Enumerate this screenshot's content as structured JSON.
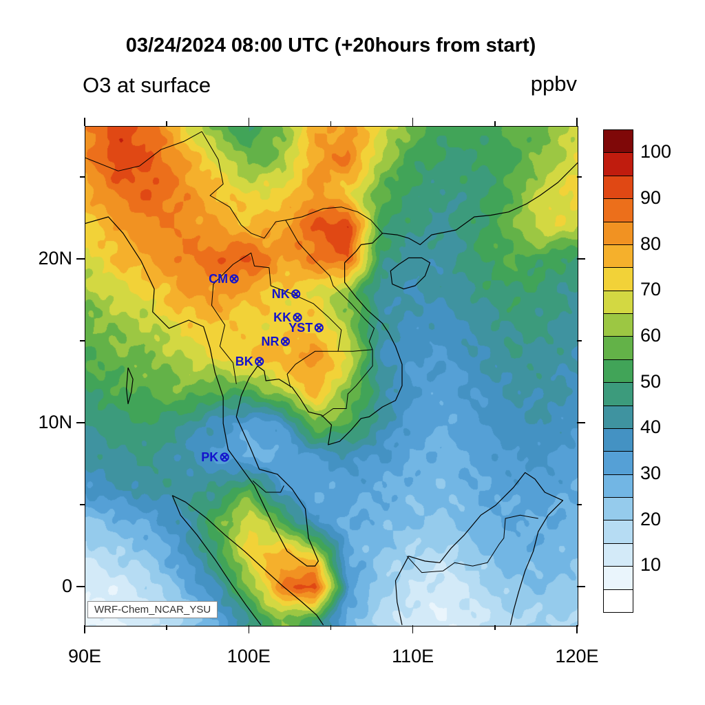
{
  "figure": {
    "title": "03/24/2024 08:00 UTC (+20hours from start)",
    "subtitle_left": "O3 at surface",
    "units_label": "ppbv",
    "watermark": "WRF-Chem_NCAR_YSU"
  },
  "chart_data": {
    "type": "heatmap",
    "title": "O3 at surface",
    "units": "ppbv",
    "annotation": "WRF-Chem_NCAR_YSU",
    "x_axis": {
      "min": 90,
      "max": 120,
      "minor_tick_interval": 5,
      "ticks": [
        {
          "value": 90,
          "label": "90E"
        },
        {
          "value": 100,
          "label": "100E"
        },
        {
          "value": 110,
          "label": "110E"
        },
        {
          "value": 120,
          "label": "120E"
        }
      ]
    },
    "y_axis": {
      "min": -2.35,
      "max": 28.1,
      "minor_tick_interval": 5,
      "ticks": [
        {
          "value": 0,
          "label": "0"
        },
        {
          "value": 10,
          "label": "10N"
        },
        {
          "value": 20,
          "label": "20N"
        }
      ]
    },
    "color_scale": {
      "min": 0,
      "max": 105,
      "step": 5,
      "labels": [
        10,
        20,
        30,
        40,
        50,
        60,
        70,
        80,
        90,
        100
      ],
      "colors": [
        "#ffffff",
        "#eaf5fc",
        "#d3eaf8",
        "#b6dcf3",
        "#95cbec",
        "#72b6e4",
        "#55a0d6",
        "#4492c3",
        "#3f93a0",
        "#3c9b7c",
        "#41a458",
        "#63b248",
        "#9cc743",
        "#d3d842",
        "#f2d238",
        "#f5b02c",
        "#f19222",
        "#ec6f1b",
        "#e04814",
        "#c01c0e",
        "#7f0808"
      ]
    },
    "grid": {
      "comment": "Approximate O3 ppbv field read from the plot; rows from lat 28N down to 2S, cols from lon 90E to 120E",
      "lon_start": 90,
      "lon_step": 2,
      "lat_start": 28,
      "lat_step": -2,
      "values": [
        [
          85,
          92,
          88,
          72,
          58,
          50,
          60,
          78,
          82,
          70,
          58,
          52,
          52,
          56,
          58,
          66
        ],
        [
          82,
          94,
          90,
          80,
          70,
          58,
          62,
          80,
          86,
          64,
          52,
          48,
          50,
          53,
          62,
          70
        ],
        [
          78,
          86,
          90,
          84,
          76,
          70,
          72,
          82,
          72,
          56,
          48,
          45,
          48,
          56,
          68,
          72
        ],
        [
          72,
          80,
          84,
          84,
          80,
          76,
          80,
          90,
          96,
          52,
          46,
          44,
          50,
          58,
          70,
          66
        ],
        [
          68,
          75,
          80,
          85,
          88,
          92,
          80,
          85,
          90,
          48,
          42,
          42,
          50,
          55,
          52,
          48
        ],
        [
          62,
          68,
          72,
          80,
          82,
          78,
          72,
          70,
          60,
          42,
          40,
          42,
          46,
          50,
          48,
          44
        ],
        [
          58,
          62,
          65,
          72,
          75,
          72,
          72,
          75,
          62,
          44,
          38,
          38,
          42,
          46,
          46,
          42
        ],
        [
          55,
          58,
          60,
          65,
          70,
          75,
          78,
          82,
          70,
          40,
          35,
          35,
          40,
          44,
          44,
          40
        ],
        [
          50,
          54,
          56,
          60,
          55,
          55,
          65,
          78,
          60,
          45,
          34,
          32,
          36,
          40,
          42,
          38
        ],
        [
          45,
          48,
          50,
          45,
          38,
          32,
          35,
          60,
          55,
          42,
          32,
          30,
          34,
          38,
          40,
          36
        ],
        [
          42,
          44,
          46,
          40,
          34,
          28,
          30,
          35,
          38,
          35,
          30,
          28,
          32,
          35,
          36,
          33
        ],
        [
          36,
          40,
          42,
          44,
          45,
          55,
          35,
          30,
          32,
          30,
          27,
          26,
          30,
          32,
          33,
          30
        ],
        [
          24,
          28,
          32,
          40,
          55,
          70,
          55,
          35,
          30,
          28,
          25,
          24,
          28,
          30,
          30,
          28
        ],
        [
          16,
          20,
          25,
          35,
          50,
          72,
          78,
          70,
          30,
          24,
          20,
          18,
          24,
          28,
          28,
          26
        ],
        [
          10,
          12,
          18,
          28,
          40,
          60,
          85,
          95,
          35,
          22,
          15,
          12,
          18,
          24,
          25,
          23
        ],
        [
          8,
          10,
          14,
          20,
          30,
          45,
          60,
          50,
          28,
          18,
          12,
          10,
          14,
          18,
          20,
          20
        ]
      ]
    },
    "stations": {
      "marker_glyph": "⊗",
      "color": "#1414cc",
      "list": [
        {
          "id": "CM",
          "lon": 98.98,
          "lat": 18.79
        },
        {
          "id": "NK",
          "lon": 102.74,
          "lat": 17.87
        },
        {
          "id": "KK",
          "lon": 102.84,
          "lat": 16.44
        },
        {
          "id": "YST",
          "lon": 104.15,
          "lat": 15.8
        },
        {
          "id": "NR",
          "lon": 102.1,
          "lat": 14.97
        },
        {
          "id": "BK",
          "lon": 100.52,
          "lat": 13.75
        },
        {
          "id": "PK",
          "lon": 98.4,
          "lat": 7.9
        }
      ]
    }
  },
  "basemap": {
    "coastlines": [
      [
        [
          90,
          22.2
        ],
        [
          91.4,
          22.6
        ],
        [
          92.3,
          21.6
        ],
        [
          93.4,
          19.9
        ],
        [
          94.2,
          18.2
        ],
        [
          94.1,
          16.8
        ],
        [
          95.1,
          15.8
        ],
        [
          96.3,
          16.3
        ],
        [
          97.2,
          15.9
        ],
        [
          97.6,
          14.6
        ],
        [
          97.9,
          13.1
        ],
        [
          98.4,
          11.6
        ],
        [
          98.4,
          10.0
        ],
        [
          98.7,
          8.4
        ],
        [
          99.5,
          7.3
        ],
        [
          100.3,
          6.2
        ],
        [
          101.4,
          3.9
        ],
        [
          102.3,
          2.2
        ],
        [
          103.5,
          1.3
        ],
        [
          104.0,
          1.3
        ],
        [
          104.2,
          1.6
        ],
        [
          103.6,
          3.0
        ],
        [
          103.4,
          4.8
        ],
        [
          102.6,
          6.0
        ],
        [
          101.7,
          6.9
        ],
        [
          100.6,
          7.2
        ],
        [
          100.1,
          8.4
        ],
        [
          99.7,
          9.3
        ],
        [
          99.2,
          10.4
        ],
        [
          99.5,
          11.7
        ],
        [
          100.0,
          12.8
        ],
        [
          100.5,
          13.5
        ],
        [
          100.9,
          13.2
        ],
        [
          101.0,
          12.6
        ],
        [
          101.8,
          12.7
        ],
        [
          102.6,
          12.2
        ],
        [
          103.1,
          11.5
        ],
        [
          103.6,
          10.7
        ],
        [
          104.4,
          10.5
        ],
        [
          105.0,
          9.9
        ],
        [
          104.8,
          8.7
        ],
        [
          105.5,
          8.9
        ],
        [
          106.2,
          9.6
        ],
        [
          106.8,
          10.3
        ],
        [
          107.3,
          10.4
        ],
        [
          108.1,
          11.0
        ],
        [
          108.9,
          11.4
        ],
        [
          109.3,
          12.3
        ],
        [
          109.3,
          13.6
        ],
        [
          108.9,
          14.7
        ],
        [
          108.5,
          15.5
        ],
        [
          108.1,
          16.1
        ],
        [
          107.2,
          16.9
        ],
        [
          106.5,
          17.7
        ],
        [
          105.8,
          18.6
        ],
        [
          105.8,
          19.8
        ],
        [
          106.5,
          20.5
        ],
        [
          106.8,
          20.9
        ],
        [
          107.5,
          21.0
        ],
        [
          108.1,
          21.6
        ],
        [
          109.0,
          21.5
        ],
        [
          109.7,
          21.3
        ],
        [
          110.4,
          20.9
        ],
        [
          111.1,
          21.5
        ],
        [
          112.6,
          21.8
        ],
        [
          113.7,
          22.6
        ],
        [
          114.7,
          22.7
        ],
        [
          115.8,
          22.9
        ],
        [
          116.9,
          23.4
        ],
        [
          117.7,
          23.9
        ],
        [
          118.8,
          24.7
        ],
        [
          119.7,
          25.6
        ],
        [
          120,
          25.9
        ]
      ],
      [
        [
          95.3,
          5.6
        ],
        [
          96.1,
          5.2
        ],
        [
          97.4,
          4.2
        ],
        [
          98.5,
          3.2
        ],
        [
          99.7,
          2.2
        ],
        [
          100.9,
          1.1
        ],
        [
          102.0,
          0.1
        ],
        [
          103.2,
          -0.9
        ],
        [
          104.1,
          -1.7
        ],
        [
          104.5,
          -2.3
        ]
      ],
      [
        [
          95.3,
          5.6
        ],
        [
          95.8,
          4.4
        ],
        [
          96.8,
          3.2
        ],
        [
          97.9,
          1.7
        ],
        [
          98.9,
          0.2
        ],
        [
          99.8,
          -1.1
        ],
        [
          100.7,
          -2.3
        ]
      ],
      [
        [
          109.3,
          -2.3
        ],
        [
          109.0,
          -0.9
        ],
        [
          108.9,
          0.4
        ],
        [
          109.7,
          1.9
        ],
        [
          110.7,
          1.6
        ],
        [
          111.6,
          1.5
        ],
        [
          112.3,
          2.4
        ],
        [
          113.1,
          3.2
        ],
        [
          114.1,
          4.4
        ],
        [
          115.0,
          5.0
        ],
        [
          116.1,
          6.1
        ],
        [
          116.8,
          7.0
        ],
        [
          117.4,
          6.6
        ],
        [
          118.0,
          5.8
        ],
        [
          119.1,
          5.3
        ],
        [
          118.2,
          4.4
        ],
        [
          117.6,
          3.4
        ],
        [
          117.3,
          2.2
        ],
        [
          116.8,
          1.0
        ],
        [
          116.4,
          -0.3
        ],
        [
          116.1,
          -1.4
        ],
        [
          115.9,
          -2.3
        ]
      ],
      [
        [
          108.7,
          18.5
        ],
        [
          109.4,
          18.2
        ],
        [
          110.1,
          18.4
        ],
        [
          110.7,
          19.0
        ],
        [
          111.0,
          19.8
        ],
        [
          110.5,
          20.1
        ],
        [
          109.7,
          20.1
        ],
        [
          109.1,
          19.7
        ],
        [
          108.6,
          19.3
        ],
        [
          108.7,
          18.5
        ]
      ],
      [
        [
          92.6,
          13.4
        ],
        [
          92.9,
          12.7
        ],
        [
          92.8,
          11.9
        ],
        [
          92.6,
          11.2
        ],
        [
          92.5,
          12.1
        ],
        [
          92.6,
          13.4
        ]
      ]
    ],
    "borders": [
      [
        [
          90,
          26.2
        ],
        [
          92.0,
          25.4
        ],
        [
          93.3,
          25.7
        ],
        [
          94.6,
          26.7
        ],
        [
          96.0,
          27.2
        ],
        [
          97.1,
          27.8
        ]
      ],
      [
        [
          97.1,
          27.8
        ],
        [
          98.1,
          26.1
        ],
        [
          98.4,
          24.6
        ],
        [
          97.6,
          23.9
        ],
        [
          98.8,
          23.2
        ],
        [
          99.5,
          22.1
        ],
        [
          100.1,
          21.6
        ],
        [
          100.9,
          21.3
        ],
        [
          101.6,
          22.3
        ],
        [
          102.2,
          22.4
        ],
        [
          103.2,
          22.6
        ],
        [
          104.5,
          23.1
        ],
        [
          105.6,
          23.2
        ],
        [
          106.6,
          22.9
        ],
        [
          107.4,
          22.4
        ],
        [
          108.1,
          21.6
        ]
      ],
      [
        [
          100.1,
          20.4
        ],
        [
          99.0,
          19.7
        ],
        [
          97.8,
          18.5
        ],
        [
          97.7,
          17.2
        ],
        [
          98.5,
          16.0
        ],
        [
          98.2,
          14.7
        ],
        [
          99.0,
          13.7
        ],
        [
          99.2,
          12.4
        ]
      ],
      [
        [
          100.1,
          20.4
        ],
        [
          100.3,
          19.6
        ],
        [
          101.2,
          19.5
        ],
        [
          101.3,
          18.4
        ],
        [
          102.6,
          17.9
        ],
        [
          103.9,
          17.3
        ],
        [
          104.8,
          16.5
        ],
        [
          105.6,
          15.7
        ],
        [
          105.4,
          14.4
        ]
      ],
      [
        [
          105.4,
          14.4
        ],
        [
          104.0,
          14.4
        ],
        [
          102.8,
          13.6
        ],
        [
          102.3,
          13.0
        ],
        [
          102.5,
          12.2
        ]
      ],
      [
        [
          102.2,
          22.4
        ],
        [
          103.0,
          21.0
        ],
        [
          104.0,
          19.9
        ],
        [
          104.9,
          19.0
        ],
        [
          105.1,
          18.4
        ],
        [
          106.2,
          17.3
        ],
        [
          107.0,
          16.4
        ],
        [
          107.6,
          15.8
        ],
        [
          107.3,
          15.0
        ],
        [
          107.5,
          14.5
        ]
      ],
      [
        [
          107.5,
          14.5
        ],
        [
          107.5,
          13.5
        ],
        [
          106.5,
          12.3
        ],
        [
          106.0,
          11.8
        ],
        [
          105.9,
          10.9
        ],
        [
          105.1,
          10.9
        ],
        [
          104.4,
          10.4
        ]
      ],
      [
        [
          105.4,
          14.4
        ],
        [
          106.3,
          14.4
        ],
        [
          107.5,
          14.5
        ]
      ],
      [
        [
          100.2,
          6.5
        ],
        [
          101.0,
          5.8
        ],
        [
          101.9,
          5.8
        ],
        [
          102.1,
          6.2
        ]
      ],
      [
        [
          109.6,
          1.9
        ],
        [
          110.5,
          0.9
        ],
        [
          111.8,
          1.0
        ],
        [
          112.5,
          1.5
        ],
        [
          113.6,
          1.3
        ],
        [
          114.5,
          1.5
        ],
        [
          115.2,
          2.6
        ],
        [
          115.5,
          3.0
        ],
        [
          115.6,
          4.2
        ],
        [
          116.5,
          4.4
        ],
        [
          117.6,
          4.2
        ]
      ]
    ]
  }
}
